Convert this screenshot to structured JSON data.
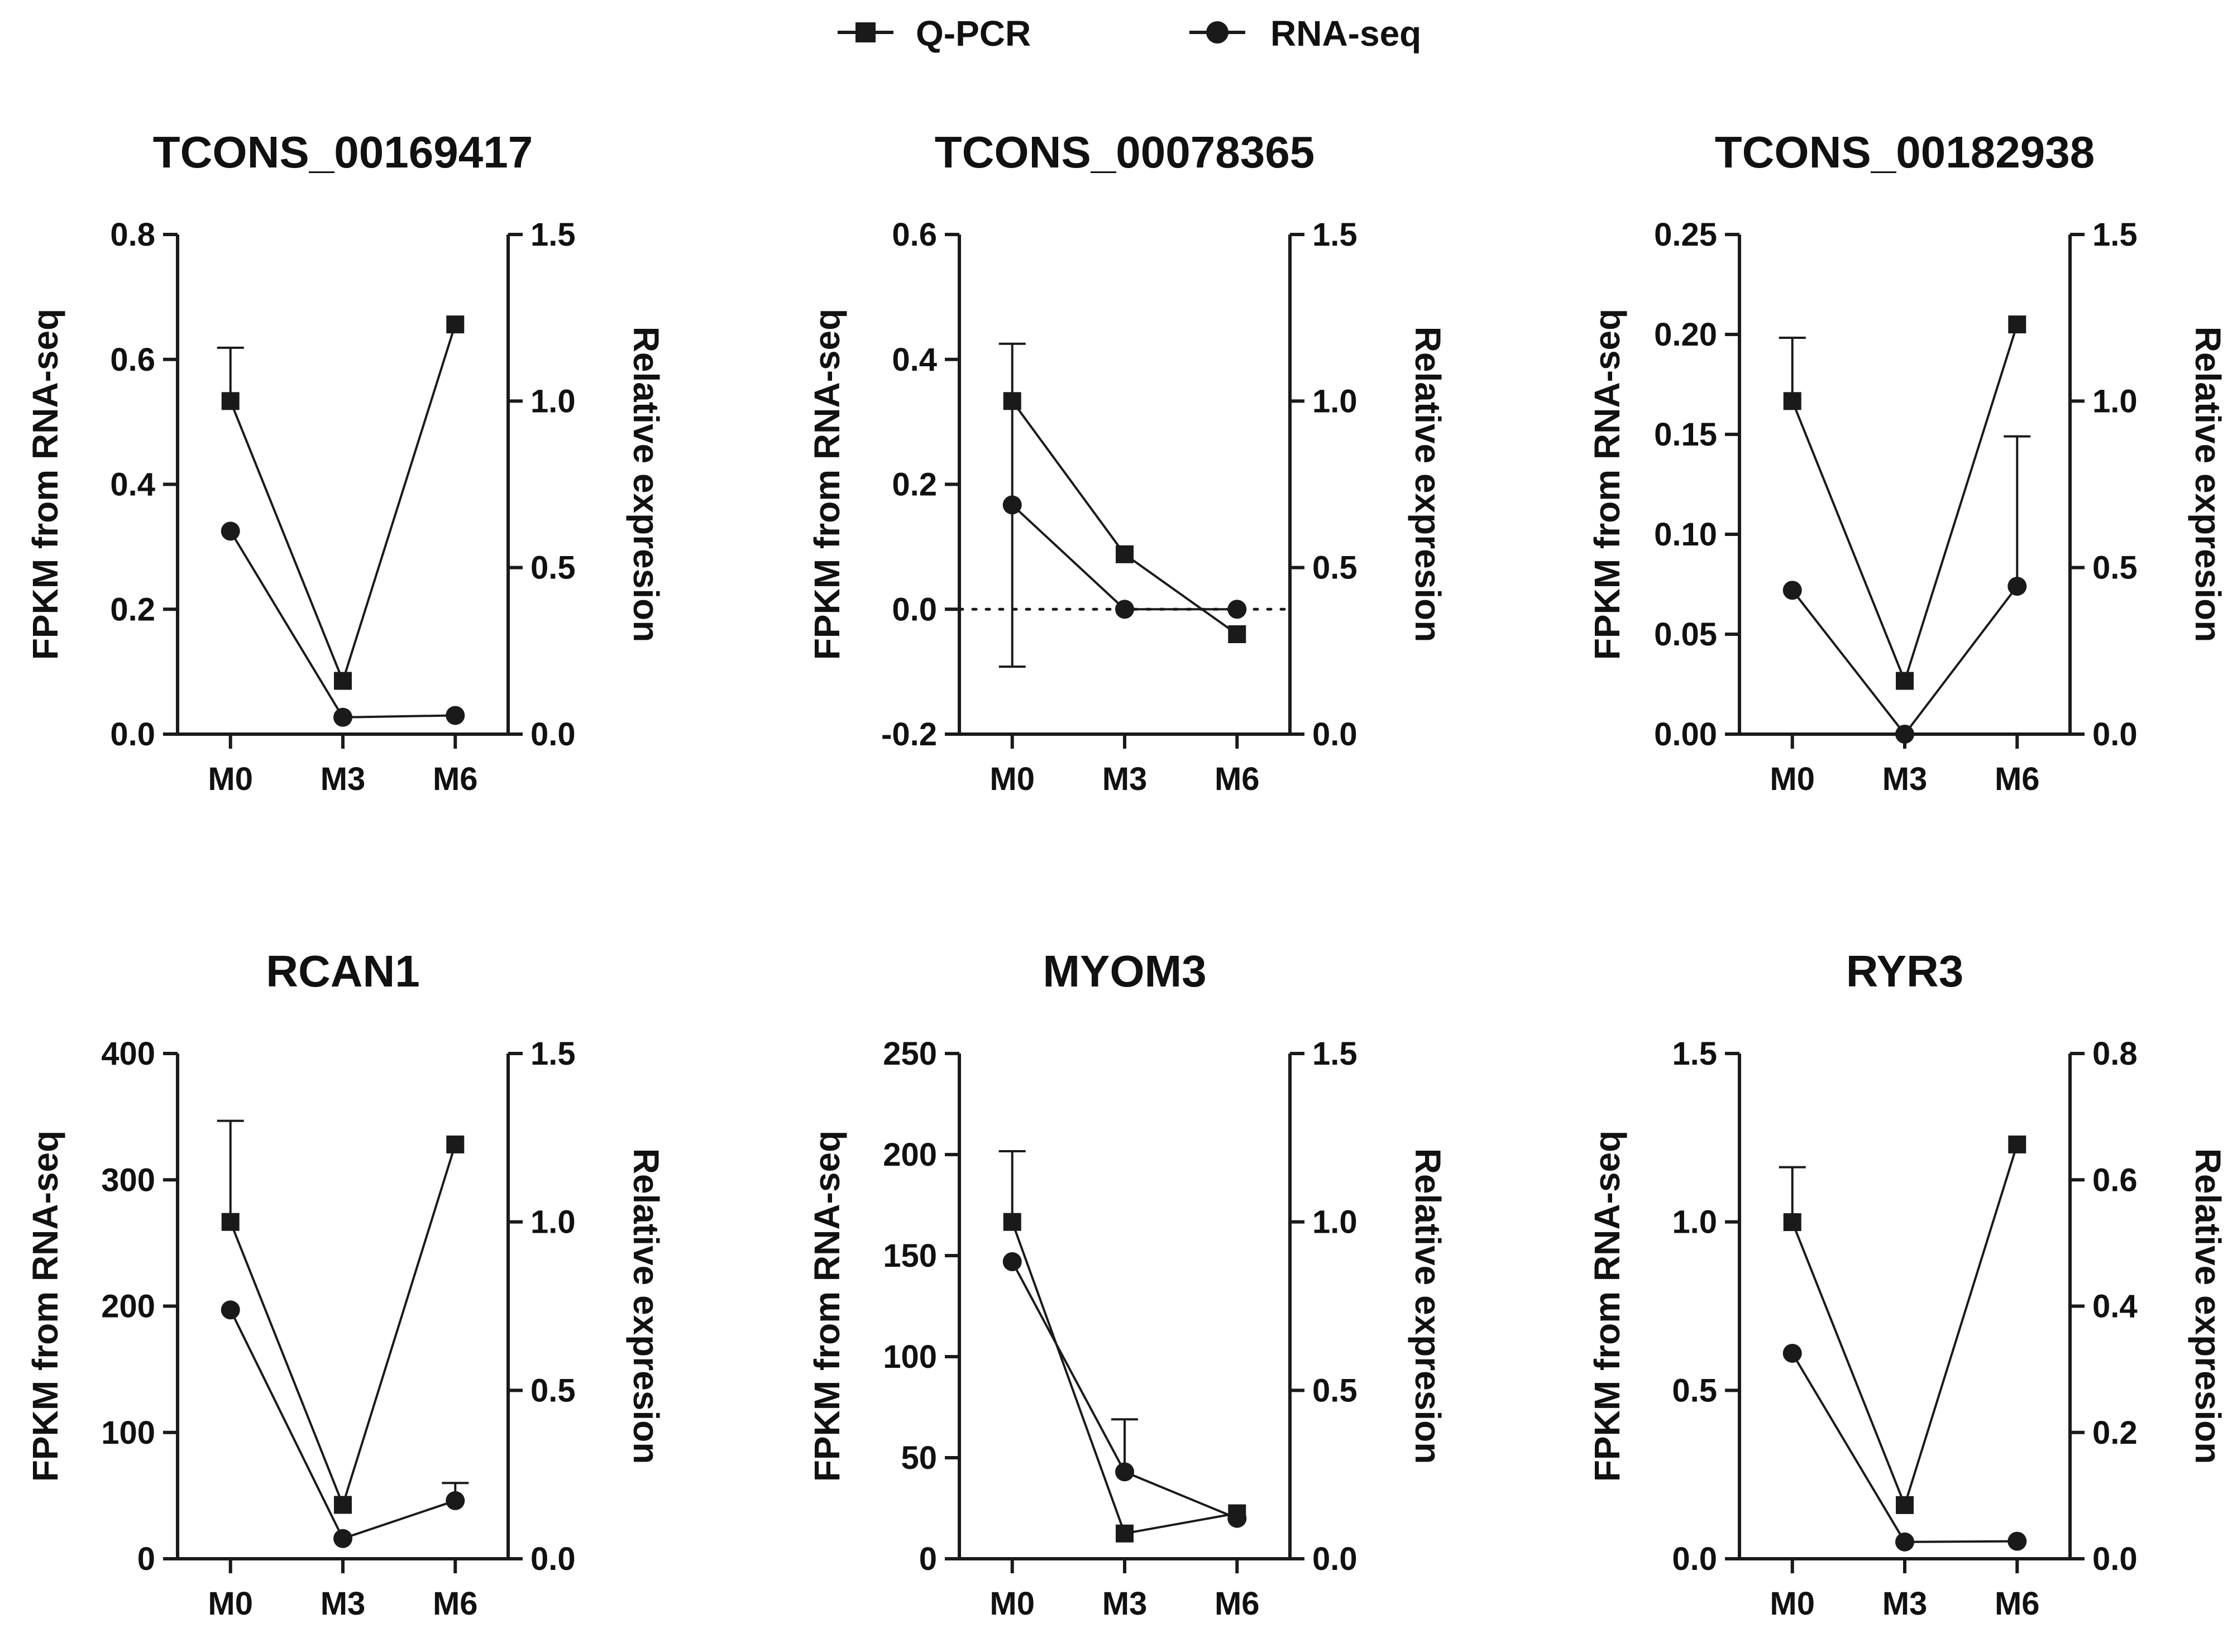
{
  "legend": {
    "qpcr_label": "Q-PCR",
    "rnaseq_label": "RNA-seq"
  },
  "colors": {
    "line": "#1a1a1a",
    "background": "#ffffff"
  },
  "chart_data": [
    {
      "type": "line",
      "title": "TCONS_00169417",
      "categories": [
        "M0",
        "M3",
        "M6"
      ],
      "ylabel_left": "FPKM from RNA-seq",
      "ylabel_right": "Relative expresion",
      "left_ylim": [
        0,
        0.8
      ],
      "left_ticks": [
        "0.0",
        "0.2",
        "0.4",
        "0.6",
        "0.8"
      ],
      "right_ylim": [
        0,
        1.5
      ],
      "right_ticks": [
        "0.0",
        "0.5",
        "1.0",
        "1.5"
      ],
      "zero_line": false,
      "series": [
        {
          "name": "Q-PCR",
          "marker": "square",
          "axis": "right",
          "values": [
            1.0,
            0.16,
            1.23
          ],
          "error_up": [
            1.16,
            null,
            null
          ]
        },
        {
          "name": "RNA-seq",
          "marker": "circle",
          "axis": "left",
          "values": [
            0.325,
            0.027,
            0.03
          ],
          "error_up": [
            null,
            null,
            null
          ]
        }
      ]
    },
    {
      "type": "line",
      "title": "TCONS_00078365",
      "categories": [
        "M0",
        "M3",
        "M6"
      ],
      "ylabel_left": "FPKM from RNA-seq",
      "ylabel_right": "Relative expresion",
      "left_ylim": [
        -0.2,
        0.6
      ],
      "left_ticks": [
        "-0.2",
        "0.0",
        "0.2",
        "0.4",
        "0.6"
      ],
      "right_ylim": [
        0,
        1.5
      ],
      "right_ticks": [
        "0.0",
        "0.5",
        "1.0",
        "1.5"
      ],
      "zero_line": true,
      "series": [
        {
          "name": "Q-PCR",
          "marker": "square",
          "axis": "right",
          "values": [
            1.0,
            0.54,
            0.3
          ],
          "error_up": [
            null,
            null,
            null
          ]
        },
        {
          "name": "RNA-seq",
          "marker": "circle",
          "axis": "left",
          "values": [
            0.167,
            0.0,
            0.0
          ],
          "error_up": [
            0.425,
            null,
            null
          ],
          "error_down": [
            -0.092,
            null,
            null
          ]
        }
      ]
    },
    {
      "type": "line",
      "title": "TCONS_00182938",
      "categories": [
        "M0",
        "M3",
        "M6"
      ],
      "ylabel_left": "FPKM from RNA-seq",
      "ylabel_right": "Relative expresion",
      "left_ylim": [
        0,
        0.25
      ],
      "left_ticks": [
        "0.00",
        "0.05",
        "0.10",
        "0.15",
        "0.20",
        "0.25"
      ],
      "right_ylim": [
        0,
        1.5
      ],
      "right_ticks": [
        "0.0",
        "0.5",
        "1.0",
        "1.5"
      ],
      "zero_line": false,
      "series": [
        {
          "name": "Q-PCR",
          "marker": "square",
          "axis": "right",
          "values": [
            1.0,
            0.16,
            1.23
          ],
          "error_up": [
            1.19,
            null,
            null
          ]
        },
        {
          "name": "RNA-seq",
          "marker": "circle",
          "axis": "left",
          "values": [
            0.072,
            0.0,
            0.074
          ],
          "error_up": [
            null,
            null,
            0.149
          ]
        }
      ]
    },
    {
      "type": "line",
      "title": "RCAN1",
      "categories": [
        "M0",
        "M3",
        "M6"
      ],
      "ylabel_left": "FPKM from RNA-seq",
      "ylabel_right": "Relative expresion",
      "left_ylim": [
        0,
        400
      ],
      "left_ticks": [
        "0",
        "100",
        "200",
        "300",
        "400"
      ],
      "right_ylim": [
        0,
        1.5
      ],
      "right_ticks": [
        "0.0",
        "0.5",
        "1.0",
        "1.5"
      ],
      "zero_line": false,
      "series": [
        {
          "name": "Q-PCR",
          "marker": "square",
          "axis": "right",
          "values": [
            1.0,
            0.16,
            1.23
          ],
          "error_up": [
            1.3,
            null,
            null
          ]
        },
        {
          "name": "RNA-seq",
          "marker": "circle",
          "axis": "left",
          "values": [
            197,
            16,
            46
          ],
          "error_up": [
            null,
            null,
            60
          ]
        }
      ]
    },
    {
      "type": "line",
      "title": "MYOM3",
      "categories": [
        "M0",
        "M3",
        "M6"
      ],
      "ylabel_left": "FPKM from RNA-seq",
      "ylabel_right": "Relative expresion",
      "left_ylim": [
        0,
        250
      ],
      "left_ticks": [
        "0",
        "50",
        "100",
        "150",
        "200",
        "250"
      ],
      "right_ylim": [
        0,
        1.5
      ],
      "right_ticks": [
        "0.0",
        "0.5",
        "1.0",
        "1.5"
      ],
      "zero_line": false,
      "series": [
        {
          "name": "Q-PCR",
          "marker": "square",
          "axis": "right",
          "values": [
            1.0,
            0.075,
            0.135
          ],
          "error_up": [
            1.21,
            null,
            null
          ]
        },
        {
          "name": "RNA-seq",
          "marker": "circle",
          "axis": "left",
          "values": [
            147,
            43,
            20
          ],
          "error_up": [
            null,
            69,
            null
          ]
        }
      ]
    },
    {
      "type": "line",
      "title": "RYR3",
      "categories": [
        "M0",
        "M3",
        "M6"
      ],
      "ylabel_left": "FPKM from RNA-seq",
      "ylabel_right": "Relative expresion",
      "left_ylim": [
        0,
        1.5
      ],
      "left_ticks": [
        "0.0",
        "0.5",
        "1.0",
        "1.5"
      ],
      "right_ylim": [
        0,
        0.8
      ],
      "right_ticks": [
        "0.0",
        "0.2",
        "0.4",
        "0.6",
        "0.8"
      ],
      "zero_line": false,
      "series": [
        {
          "name": "Q-PCR",
          "marker": "square",
          "axis": "right",
          "values": [
            0.533,
            0.085,
            0.656
          ],
          "error_up": [
            0.62,
            null,
            null
          ]
        },
        {
          "name": "RNA-seq",
          "marker": "circle",
          "axis": "left",
          "values": [
            0.61,
            0.05,
            0.052
          ],
          "error_up": [
            null,
            null,
            null
          ]
        }
      ]
    }
  ]
}
